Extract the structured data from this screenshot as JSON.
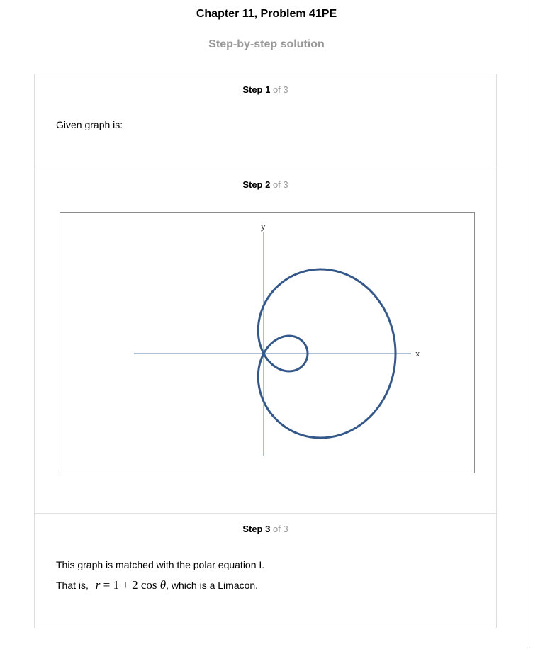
{
  "header": {
    "title": "Chapter 11, Problem 41PE",
    "subtitle": "Step-by-step solution"
  },
  "steps": [
    {
      "label": "Step 1",
      "of": "of 3",
      "text": "Given graph is:"
    },
    {
      "label": "Step 2",
      "of": "of 3",
      "graph": {
        "x_axis_label": "x",
        "y_axis_label": "y",
        "curve_color": "#35588a",
        "axis_color": "#5a7fb0"
      }
    },
    {
      "label": "Step 3",
      "of": "of 3",
      "text1": "This graph is matched with the polar equation I.",
      "that_is": "That is,",
      "eq_r": "r",
      "eq_mid": " = 1 + 2 cos ",
      "eq_theta": "θ",
      "eq_suffix": ", which is a Limacon."
    }
  ]
}
